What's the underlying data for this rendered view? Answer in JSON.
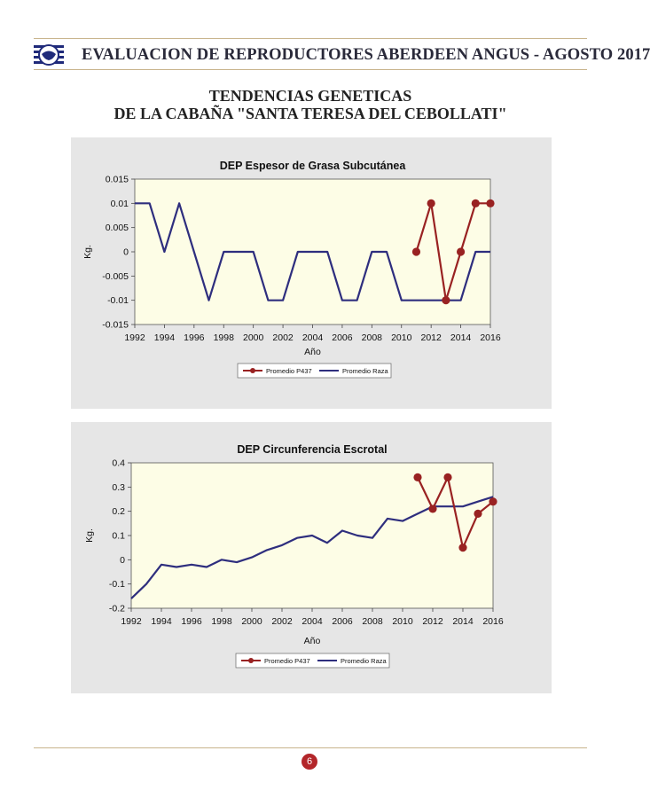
{
  "header": {
    "title": "EVALUACION DE REPRODUCTORES ABERDEEN ANGUS - AGOSTO 2017",
    "logo_icon": "aberdeen-angus-shield-logo"
  },
  "page": {
    "heading_line1": "TENDENCIAS GENETICAS",
    "heading_line2": "DE LA CABAÑA \"SANTA TERESA DEL CEBOLLATI\"",
    "page_number": "6"
  },
  "colors": {
    "p437": "#992222",
    "raza": "#2e2e7e",
    "plot_bg": "#fdfde6",
    "panel_bg": "#e6e6e6",
    "accent": "#b3262a"
  },
  "chart_data": [
    {
      "type": "line",
      "title": "DEP Espesor de Grasa Subcutánea",
      "xlabel": "Año",
      "ylabel": "Kg.",
      "xlim": [
        1992,
        2016
      ],
      "ylim": [
        -0.015,
        0.015
      ],
      "xticks": [
        "1992",
        "1994",
        "1996",
        "1998",
        "2000",
        "2002",
        "2004",
        "2006",
        "2008",
        "2010",
        "2012",
        "2014",
        "2016"
      ],
      "yticks": [
        "0.015",
        "0.01",
        "0.005",
        "0",
        "-0.005",
        "-0.01",
        "-0.015"
      ],
      "legend_position": "bottom",
      "series": [
        {
          "name": "Promedio P437",
          "x": [
            2011,
            2012,
            2013,
            2014,
            2015,
            2016
          ],
          "y": [
            0,
            0.01,
            -0.01,
            0,
            0.01,
            0.01
          ]
        },
        {
          "name": "Promedio Raza",
          "x": [
            1992,
            1993,
            1994,
            1995,
            1996,
            1997,
            1998,
            1999,
            2000,
            2001,
            2002,
            2003,
            2004,
            2005,
            2006,
            2007,
            2008,
            2009,
            2010,
            2011,
            2012,
            2013,
            2014,
            2015,
            2016
          ],
          "y": [
            0.01,
            0.01,
            0,
            0.01,
            0,
            -0.01,
            0,
            0,
            0,
            -0.01,
            -0.01,
            0,
            0,
            0,
            -0.01,
            -0.01,
            0,
            0,
            -0.01,
            -0.01,
            -0.01,
            -0.01,
            -0.01,
            0,
            0
          ]
        }
      ]
    },
    {
      "type": "line",
      "title": "DEP Circunferencia Escrotal",
      "xlabel": "Año",
      "ylabel": "Kg.",
      "xlim": [
        1992,
        2016
      ],
      "ylim": [
        -0.2,
        0.4
      ],
      "xticks": [
        "1992",
        "1994",
        "1996",
        "1998",
        "2000",
        "2002",
        "2004",
        "2006",
        "2008",
        "2010",
        "2012",
        "2014",
        "2016"
      ],
      "yticks": [
        "0.4",
        "0.3",
        "0.2",
        "0.1",
        "0",
        "-0.1",
        "-0.2"
      ],
      "legend_position": "bottom",
      "series": [
        {
          "name": "Promedio P437",
          "x": [
            2011,
            2012,
            2013,
            2014,
            2015,
            2016
          ],
          "y": [
            0.34,
            0.21,
            0.34,
            0.05,
            0.19,
            0.24
          ]
        },
        {
          "name": "Promedio Raza",
          "x": [
            1992,
            1993,
            1994,
            1995,
            1996,
            1997,
            1998,
            1999,
            2000,
            2001,
            2002,
            2003,
            2004,
            2005,
            2006,
            2007,
            2008,
            2009,
            2010,
            2011,
            2012,
            2013,
            2014,
            2015,
            2016
          ],
          "y": [
            -0.16,
            -0.1,
            -0.02,
            -0.03,
            -0.02,
            -0.03,
            0,
            -0.01,
            0.01,
            0.04,
            0.06,
            0.09,
            0.1,
            0.07,
            0.12,
            0.1,
            0.09,
            0.17,
            0.16,
            0.19,
            0.22,
            0.22,
            0.22,
            0.24,
            0.26
          ]
        }
      ]
    }
  ]
}
